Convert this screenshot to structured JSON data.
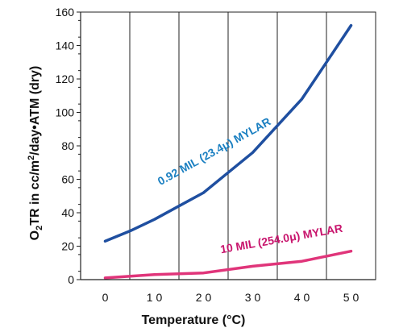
{
  "chart_data": {
    "type": "line",
    "title": "",
    "xlabel": "Temperature (°C)",
    "ylabel_main": "O",
    "ylabel_sub": "2",
    "ylabel_rest": "TR in cc/m",
    "ylabel_sup": "2",
    "ylabel_tail": "/day•ATM (dry)",
    "x_ticks": [
      0,
      10,
      20,
      30,
      40,
      50
    ],
    "x_tick_labels": [
      "0",
      "1 0",
      "2 0",
      "3 0",
      "4 0",
      "5 0"
    ],
    "y_ticks": [
      0,
      20,
      40,
      60,
      80,
      100,
      120,
      140,
      160
    ],
    "y_tick_labels": [
      "0",
      "20",
      "40",
      "60",
      "80",
      "100",
      "120",
      "140",
      "160"
    ],
    "xlim": [
      -5,
      55
    ],
    "ylim": [
      0,
      160
    ],
    "grid": "vertical",
    "series": [
      {
        "name": "0.92 MIL (23.4μ) MYLAR",
        "color": "#1f4fa0",
        "label_color": "#1a7fc1",
        "x": [
          0,
          5,
          10,
          15,
          20,
          25,
          30,
          35,
          40,
          45,
          50
        ],
        "values": [
          23,
          29,
          36,
          44,
          52,
          64,
          76,
          92,
          108,
          130,
          152
        ]
      },
      {
        "name": "10 MIL (254.0μ) MYLAR",
        "color": "#e0357a",
        "label_color": "#c8156d",
        "x": [
          0,
          10,
          20,
          30,
          40,
          50
        ],
        "values": [
          1,
          3,
          4,
          8,
          11,
          17
        ]
      }
    ]
  }
}
